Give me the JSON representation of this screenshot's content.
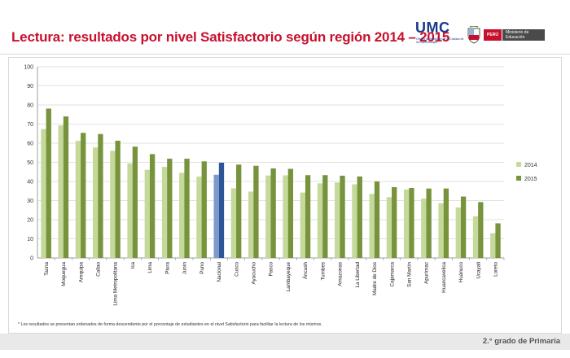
{
  "header": {
    "title": "Lectura: resultados por nivel Satisfactorio según región 2014 – 2015",
    "umc_label": "UMC",
    "umc_subtitle": "Oficina de Medición de la Calidad de los Aprendizajes",
    "peru_label": "PERÚ",
    "ministry_label": "Ministerio de Educación"
  },
  "footer": {
    "note": "* Los resultados se presentan ordenados de forma descendente por el porcentaje de estudiantes en el nivel Satisfactorio para facilitar la lectura de los mismos.",
    "grade": "2.° grado de Primaria"
  },
  "colors": {
    "series_2014": "#c4d99a",
    "series_2015": "#77933c",
    "nacional_2014": "#7d9ac8",
    "nacional_2015": "#2e5597",
    "title": "#c8102e"
  },
  "chart_data": {
    "type": "bar",
    "title": "",
    "xlabel": "",
    "ylabel": "",
    "ylim": [
      0,
      100
    ],
    "yticks": [
      0,
      10,
      20,
      30,
      40,
      50,
      60,
      70,
      80,
      90,
      100
    ],
    "grid": true,
    "legend_position": "right",
    "categories": [
      "Tacna",
      "Moquegua",
      "Arequipa",
      "Callao",
      "Lima Metropolitana",
      "Ica",
      "Lima",
      "Piura",
      "Junín",
      "Puno",
      "Nacional",
      "Cusco",
      "Ayacucho",
      "Pasco",
      "Lambayeque",
      "Áncash",
      "Tumbes",
      "Amazonas",
      "La Libertad",
      "Madre de Dios",
      "Cajamarca",
      "San Martín",
      "Apurímac",
      "Huancavelica",
      "Huánuco",
      "Ucayali",
      "Loreto"
    ],
    "highlight_category": "Nacional",
    "series": [
      {
        "name": "2014",
        "values": [
          67.4,
          69.3,
          61.2,
          57.8,
          56.0,
          49.4,
          46.1,
          47.6,
          44.5,
          42.5,
          43.5,
          36.4,
          34.7,
          43.1,
          43.2,
          34.2,
          39.0,
          39.4,
          38.5,
          33.5,
          31.8,
          35.8,
          31.0,
          28.6,
          26.4,
          21.8,
          12.9
        ]
      },
      {
        "name": "2015",
        "values": [
          78.1,
          74.0,
          65.4,
          64.8,
          61.3,
          58.2,
          54.3,
          51.9,
          51.9,
          50.5,
          49.8,
          48.8,
          48.2,
          46.8,
          46.6,
          43.3,
          43.3,
          43.0,
          42.6,
          40.0,
          37.0,
          36.6,
          36.3,
          36.3,
          32.1,
          29.2,
          18.1
        ]
      }
    ]
  }
}
